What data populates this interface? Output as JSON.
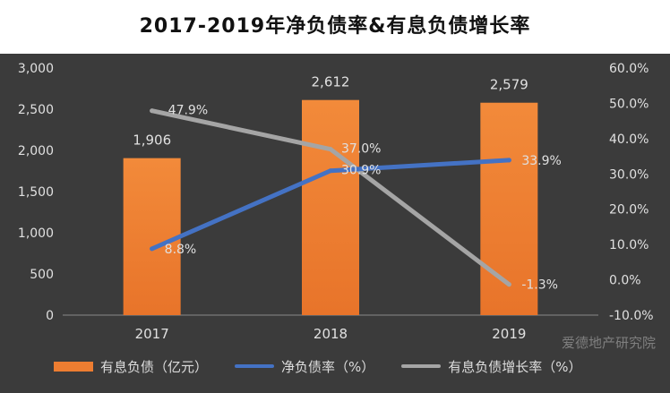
{
  "chart_data": {
    "type": "bar",
    "title": "2017-2019年净负债率&有息负债增长率",
    "categories": [
      "2017",
      "2018",
      "2019"
    ],
    "series": [
      {
        "name": "有息负债（亿元）",
        "type": "bar",
        "axis": "left",
        "values": [
          1906,
          2612,
          2579
        ],
        "labels": [
          "1,906",
          "2,612",
          "2,579"
        ],
        "color": "#ed7d31"
      },
      {
        "name": "净负债率（%）",
        "type": "line",
        "axis": "right",
        "values": [
          8.8,
          30.9,
          33.9
        ],
        "labels": [
          "8.8%",
          "30.9%",
          "33.9%"
        ],
        "color": "#4472c4"
      },
      {
        "name": "有息负债增长率（%）",
        "type": "line",
        "axis": "right",
        "values": [
          47.9,
          37.0,
          -1.3
        ],
        "labels": [
          "47.9%",
          "37.0%",
          "-1.3%"
        ],
        "color": "#a5a5a5"
      }
    ],
    "y_left": {
      "range": [
        0,
        3000
      ],
      "ticks": [
        "0",
        "500",
        "1,000",
        "1,500",
        "2,000",
        "2,500",
        "3,000"
      ]
    },
    "y_right": {
      "range": [
        -10,
        60
      ],
      "ticks": [
        "-10.0%",
        "0.0%",
        "10.0%",
        "20.0%",
        "30.0%",
        "40.0%",
        "50.0%",
        "60.0%"
      ]
    },
    "grid": false,
    "legend_position": "bottom-left",
    "background": "#3b3b3b",
    "text_color": "#e0e0e0"
  },
  "watermark": "爱德地产研究院"
}
